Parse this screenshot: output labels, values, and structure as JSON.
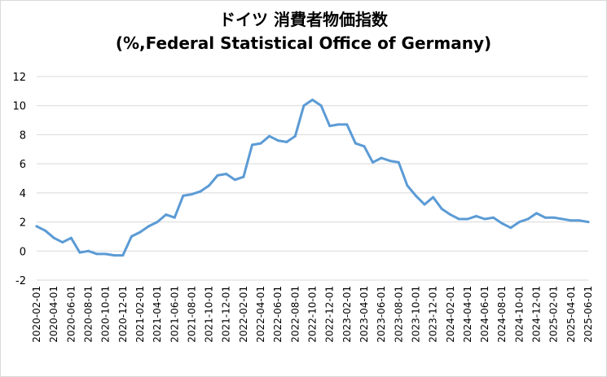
{
  "chart_data": {
    "type": "line",
    "title_line1": "ドイツ 消費者物価指数",
    "title_line2": "(%,Federal Statistical Office of Germany)",
    "xlabel": "",
    "ylabel": "",
    "ylim": [
      -2,
      12
    ],
    "yticks": [
      "12",
      "10",
      "8",
      "6",
      "4",
      "2",
      "0",
      "-2"
    ],
    "ytick_values": [
      12,
      10,
      8,
      6,
      4,
      2,
      0,
      -2
    ],
    "grid": true,
    "legend": "none",
    "line_color": "#5b9bd5",
    "xtick_labels": [
      "2020-02-01",
      "2020-04-01",
      "2020-06-01",
      "2020-08-01",
      "2020-10-01",
      "2020-12-01",
      "2021-02-01",
      "2021-04-01",
      "2021-06-01",
      "2021-08-01",
      "2021-10-01",
      "2021-12-01",
      "2022-02-01",
      "2022-04-01",
      "2022-06-01",
      "2022-08-01",
      "2022-10-01",
      "2022-12-01",
      "2023-02-01",
      "2023-04-01",
      "2023-06-01",
      "2023-08-01",
      "2023-10-01",
      "2023-12-01",
      "2024-02-01",
      "2024-04-01",
      "2024-06-01",
      "2024-08-01",
      "2024-10-01",
      "2024-12-01",
      "2025-02-01",
      "2025-04-01",
      "2025-06-01"
    ],
    "series": [
      {
        "values": [
          1.7,
          1.4,
          0.9,
          0.6,
          0.9,
          -0.1,
          0.0,
          -0.2,
          -0.2,
          -0.3,
          -0.3,
          1.0,
          1.3,
          1.7,
          2.0,
          2.5,
          2.3,
          3.8,
          3.9,
          4.1,
          4.5,
          5.2,
          5.3,
          4.9,
          5.1,
          7.3,
          7.4,
          7.9,
          7.6,
          7.5,
          7.9,
          10.0,
          10.4,
          10.0,
          8.6,
          8.7,
          8.7,
          7.4,
          7.2,
          6.1,
          6.4,
          6.2,
          6.1,
          4.5,
          3.8,
          3.2,
          3.7,
          2.9,
          2.5,
          2.2,
          2.2,
          2.4,
          2.2,
          2.3,
          1.9,
          1.6,
          2.0,
          2.2,
          2.6,
          2.3,
          2.3,
          2.2,
          2.1,
          2.1,
          2.0
        ]
      }
    ]
  }
}
